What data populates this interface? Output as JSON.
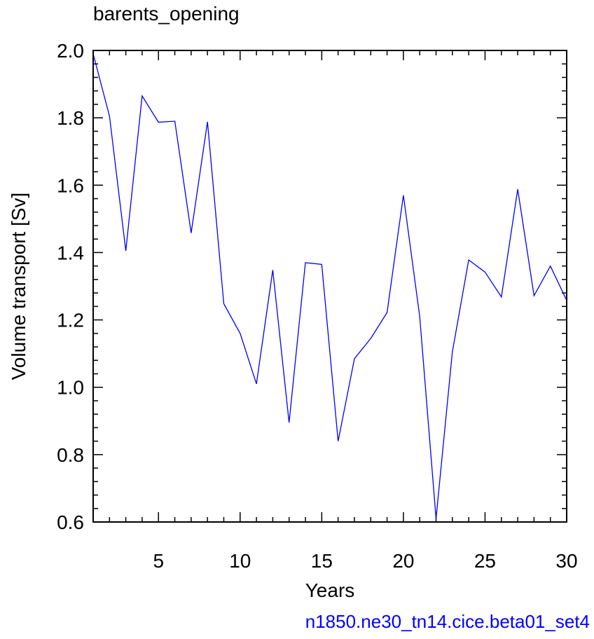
{
  "chart_data": {
    "type": "line",
    "title": "barents_opening",
    "xlabel": "Years",
    "ylabel": "Volume transport [Sv]",
    "xlim": [
      1,
      30
    ],
    "ylim": [
      0.6,
      2.0
    ],
    "xticks": [
      5,
      10,
      15,
      20,
      25,
      30
    ],
    "yticks": [
      0.6,
      0.8,
      1.0,
      1.2,
      1.4,
      1.6,
      1.8,
      2.0
    ],
    "grid": false,
    "series": [
      {
        "color": "#0000ff",
        "x": [
          1,
          2,
          3,
          4,
          5,
          6,
          7,
          8,
          9,
          10,
          11,
          12,
          13,
          14,
          15,
          16,
          17,
          18,
          19,
          20,
          21,
          22,
          23,
          24,
          25,
          26,
          27,
          28,
          29,
          30
        ],
        "values": [
          1.99,
          1.805,
          1.405,
          1.865,
          1.787,
          1.79,
          1.458,
          1.788,
          1.248,
          1.16,
          1.01,
          1.348,
          0.895,
          1.37,
          1.365,
          0.84,
          1.085,
          1.145,
          1.222,
          1.57,
          1.21,
          0.61,
          1.105,
          1.378,
          1.342,
          1.268,
          1.588,
          1.272,
          1.36,
          1.258
        ]
      }
    ]
  },
  "footer": "n1850.ne30_tn14.cice.beta01_set4"
}
